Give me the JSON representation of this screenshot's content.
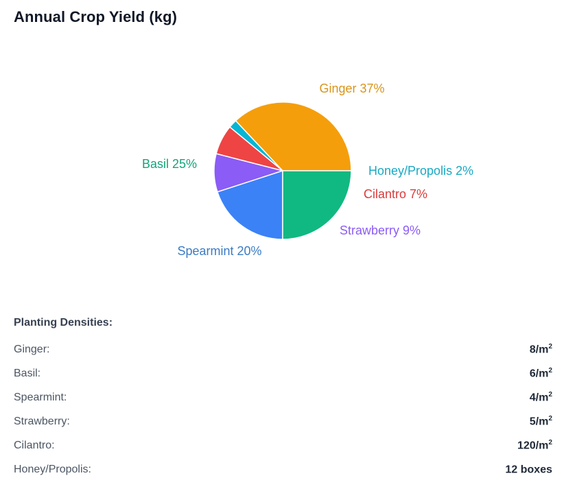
{
  "chart_data": {
    "type": "pie",
    "title": "Annual Crop Yield (kg)",
    "slices": [
      {
        "label": "Ginger",
        "percent_label": "37%",
        "value": 37,
        "color": "#F59E0B"
      },
      {
        "label": "Honey/Propolis",
        "percent_label": "2%",
        "value": 2,
        "color": "#06B6D4"
      },
      {
        "label": "Cilantro",
        "percent_label": "7%",
        "value": 7,
        "color": "#EF4444"
      },
      {
        "label": "Strawberry",
        "percent_label": "9%",
        "value": 9,
        "color": "#8B5CF6"
      },
      {
        "label": "Spearmint",
        "percent_label": "20%",
        "value": 20,
        "color": "#3B82F6"
      },
      {
        "label": "Basil",
        "percent_label": "25%",
        "value": 25,
        "color": "#10B981"
      }
    ],
    "label_colors": {
      "Ginger": "#D99418",
      "Honey/Propolis": "#17A9C4",
      "Cilantro": "#DC3B3B",
      "Strawberry": "#8B5CF6",
      "Spearmint": "#3B7BC4",
      "Basil": "#14A37A"
    }
  },
  "densities": {
    "heading": "Planting Densities:",
    "rows": [
      {
        "crop": "Ginger:",
        "value": "8/m",
        "sup": "2"
      },
      {
        "crop": "Basil:",
        "value": "6/m",
        "sup": "2"
      },
      {
        "crop": "Spearmint:",
        "value": "4/m",
        "sup": "2"
      },
      {
        "crop": "Strawberry:",
        "value": "5/m",
        "sup": "2"
      },
      {
        "crop": "Cilantro:",
        "value": "120/m",
        "sup": "2"
      },
      {
        "crop": "Honey/Propolis:",
        "value": "12 boxes",
        "sup": ""
      }
    ]
  }
}
